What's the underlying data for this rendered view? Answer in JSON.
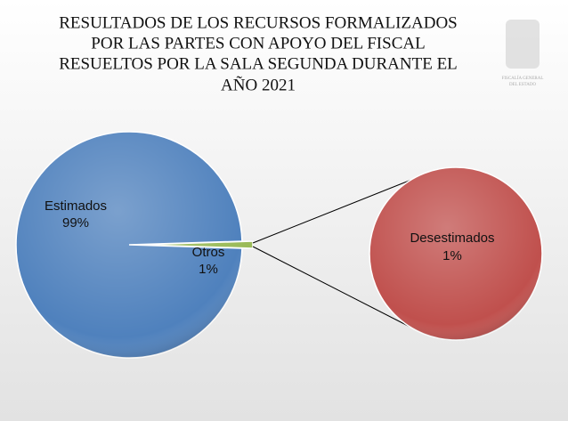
{
  "chart_data": {
    "type": "pie-of-pie",
    "title": [
      "RESULTADOS DE LOS RECURSOS FORMALIZADOS",
      "POR LAS PARTES CON APOYO DEL FISCAL",
      "RESUELTOS POR LA SALA SEGUNDA DURANTE EL",
      "AÑO 2021"
    ],
    "logo_text": [
      "FISCALÍA GENERAL",
      "DEL ESTADO"
    ],
    "categories": [
      "Estimados",
      "Otros"
    ],
    "values": [
      99,
      1
    ],
    "value_labels": [
      "99%",
      "1%"
    ],
    "colors": [
      "#4f81bd",
      "#9bbb59"
    ],
    "secondary": {
      "categories": [
        "Desestimados"
      ],
      "values": [
        1
      ],
      "value_labels": [
        "1%"
      ],
      "colors": [
        "#c0504d"
      ]
    }
  }
}
